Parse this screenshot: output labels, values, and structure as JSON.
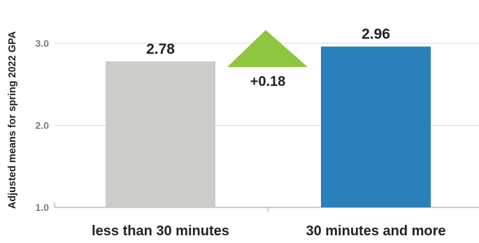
{
  "chart_data": {
    "type": "bar",
    "categories": [
      "less than 30 minutes",
      "30 minutes and more"
    ],
    "values": [
      2.78,
      2.96
    ],
    "value_labels": [
      "2.78",
      "2.96"
    ],
    "colors": [
      "#cccccb",
      "#2b7fbb"
    ],
    "ylabel": "Adjusted means for spring 2022 GPA",
    "xlabel": "",
    "ylim": [
      1.0,
      3.0
    ],
    "yticks": [
      "1.0",
      "2.0",
      "3.0"
    ],
    "grid": true,
    "annotation": {
      "text": "+0.18",
      "shape": "up-triangle",
      "color": "#8dc63f"
    }
  }
}
